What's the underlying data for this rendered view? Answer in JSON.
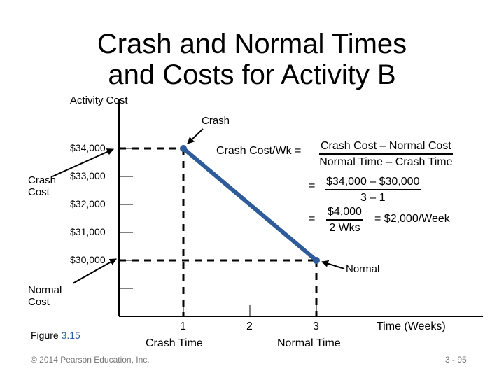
{
  "slide": {
    "title_line1": "Crash and Normal Times",
    "title_line2": "and Costs for Activity B",
    "figure_label": "Figure",
    "figure_number": "3.15",
    "copyright": "© 2014 Pearson Education, Inc.",
    "page_number": "3 - 95"
  },
  "annotations": {
    "y_axis_title": "Activity Cost",
    "x_axis_title": "Time (Weeks)",
    "crash_point_label": "Crash",
    "normal_point_label": "Normal",
    "crash_cost_label": "Crash Cost",
    "normal_cost_label": "Normal Cost",
    "crash_time_label": "Crash Time",
    "normal_time_label": "Normal Time",
    "formula": {
      "lhs": "Crash Cost/Wk =",
      "frac1_num": "Crash Cost – Normal Cost",
      "frac1_den": "Normal Time – Crash Time",
      "eq": "=",
      "frac2_num": "$34,000 – $30,000",
      "frac2_den": "3 – 1",
      "frac3_num": "$4,000",
      "frac3_den": "2 Wks",
      "result": "= $2,000/Week"
    }
  },
  "chart_data": {
    "type": "line",
    "y_tick_labels": [
      "$34,000",
      "$33,000",
      "$32,000",
      "$31,000",
      "$30,000"
    ],
    "y_ticks": [
      34000,
      33000,
      32000,
      31000,
      30000
    ],
    "x_tick_labels": [
      "1",
      "2",
      "3"
    ],
    "x_ticks": [
      1,
      2,
      3
    ],
    "ylim": [
      29000,
      35000
    ],
    "xlim": [
      0,
      4
    ],
    "series": [
      {
        "points": [
          {
            "x": 1,
            "y": 34000
          },
          {
            "x": 3,
            "y": 30000
          }
        ]
      }
    ],
    "line_color": "#2e5c9a",
    "grid": false
  }
}
